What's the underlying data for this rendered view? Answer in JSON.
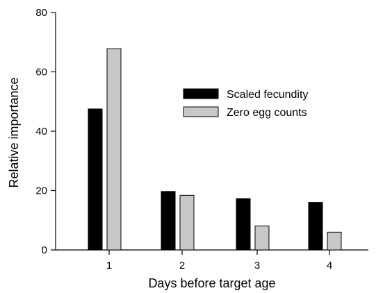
{
  "chart_data": {
    "type": "bar",
    "categories": [
      "1",
      "2",
      "3",
      "4"
    ],
    "series": [
      {
        "name": "Scaled fecundity",
        "values": [
          47.5,
          19.7,
          17.3,
          16.0
        ],
        "color": "#000000"
      },
      {
        "name": "Zero egg counts",
        "values": [
          67.8,
          18.4,
          8.1,
          6.0
        ],
        "color": "#c8c8c8"
      }
    ],
    "xlabel": "Days before target age",
    "ylabel": "Relative importance",
    "ylim": [
      0,
      80
    ],
    "yticks": [
      0,
      20,
      40,
      60,
      80
    ],
    "legend_position": "upper-right",
    "grid": false
  }
}
